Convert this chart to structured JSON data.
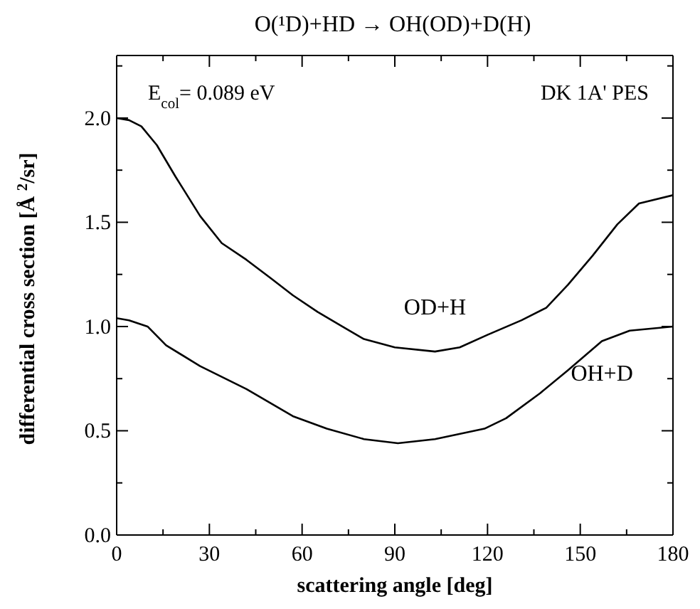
{
  "chart_data": {
    "type": "line",
    "title": "O(¹D)+HD → OH(OD)+D(H)",
    "xlabel": "scattering angle [deg]",
    "ylabel": "differential cross section [Å $^{2}$/sr]",
    "annotations": [
      "E$_{col}$= 0.089 eV",
      "DK 1A' PES"
    ],
    "xlim": [
      0,
      180
    ],
    "ylim": [
      0,
      2.3
    ],
    "xticks": [
      0,
      {
        "value": 15,
        "label": null
      },
      30,
      {
        "value": 45,
        "label": null
      },
      60,
      {
        "value": 75,
        "label": null
      },
      90,
      {
        "value": 105,
        "label": null
      },
      120,
      {
        "value": 135,
        "label": null
      },
      150,
      {
        "value": 165,
        "label": null
      },
      180
    ],
    "yticks": [
      {
        "value": 0,
        "label": "0.0"
      },
      {
        "value": 0.25,
        "label": null
      },
      {
        "value": 0.5,
        "label": "0.5"
      },
      {
        "value": 0.75,
        "label": null
      },
      {
        "value": 1,
        "label": "1.0"
      },
      {
        "value": 1.25,
        "label": null
      },
      {
        "value": 1.5,
        "label": "1.5"
      },
      {
        "value": 1.75,
        "label": null
      },
      {
        "value": 2,
        "label": "2.0"
      },
      {
        "value": 2.25,
        "label": null
      }
    ],
    "marker": "none",
    "line_style": "solid",
    "series": [
      {
        "name": "OD+H",
        "color": "#000000",
        "x": [
          0,
          4,
          8,
          13,
          19,
          27,
          34,
          42,
          50,
          57,
          65,
          73,
          80,
          90,
          103,
          111,
          120,
          131,
          139,
          146,
          154,
          162,
          169,
          180
        ],
        "values": [
          2.0,
          1.99,
          1.96,
          1.87,
          1.72,
          1.53,
          1.4,
          1.32,
          1.23,
          1.15,
          1.07,
          1.0,
          0.94,
          0.9,
          0.88,
          0.9,
          0.96,
          1.03,
          1.09,
          1.2,
          1.34,
          1.49,
          1.59,
          1.63
        ]
      },
      {
        "name": "OH+D",
        "color": "#000000",
        "x": [
          0,
          4,
          10,
          16,
          27,
          42,
          57,
          68,
          80,
          91,
          103,
          119,
          126,
          137,
          146,
          157,
          166,
          180
        ],
        "values": [
          1.04,
          1.03,
          1.0,
          0.91,
          0.81,
          0.7,
          0.57,
          0.51,
          0.46,
          0.44,
          0.46,
          0.51,
          0.56,
          0.68,
          0.79,
          0.93,
          0.98,
          1.0
        ]
      }
    ]
  }
}
